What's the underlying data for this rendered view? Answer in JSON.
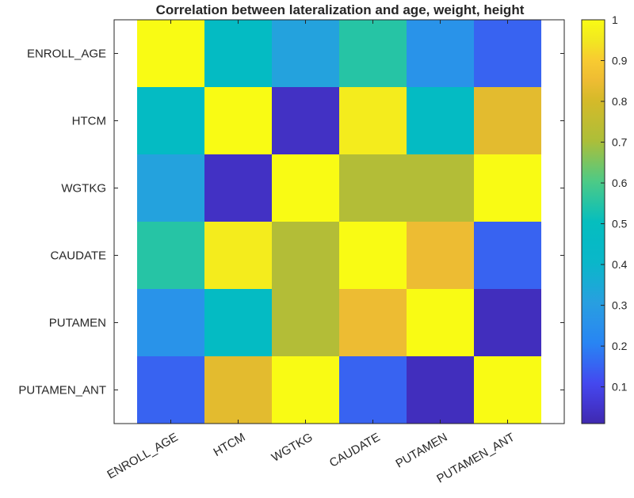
{
  "chart_data": {
    "type": "heatmap",
    "title": "Correlation between lateralization and age, weight, height",
    "xlabel": "",
    "ylabel": "",
    "x_categories": [
      "ENROLL_AGE",
      "HTCM",
      "WGTKG",
      "CAUDATE",
      "PUTAMEN",
      "PUTAMEN_ANT"
    ],
    "y_categories": [
      "ENROLL_AGE",
      "HTCM",
      "WGTKG",
      "CAUDATE",
      "PUTAMEN",
      "PUTAMEN_ANT"
    ],
    "values": [
      [
        1.0,
        0.47,
        0.32,
        0.55,
        0.26,
        0.15
      ],
      [
        0.47,
        1.0,
        0.04,
        0.96,
        0.47,
        0.83
      ],
      [
        0.32,
        0.04,
        1.0,
        0.72,
        0.72,
        1.0
      ],
      [
        0.55,
        0.96,
        0.72,
        1.0,
        0.85,
        0.15
      ],
      [
        0.26,
        0.47,
        0.72,
        0.85,
        1.0,
        0.03
      ],
      [
        0.15,
        0.83,
        1.0,
        0.15,
        0.03,
        1.0
      ]
    ],
    "colormap": "parula",
    "color_range": [
      0.0,
      1.0
    ],
    "colorbar_ticks": [
      "0.1",
      "0.2",
      "0.3",
      "0.4",
      "0.5",
      "0.6",
      "0.7",
      "0.8",
      "0.9",
      "1"
    ],
    "grid": false,
    "legend": "colorbar-right"
  }
}
